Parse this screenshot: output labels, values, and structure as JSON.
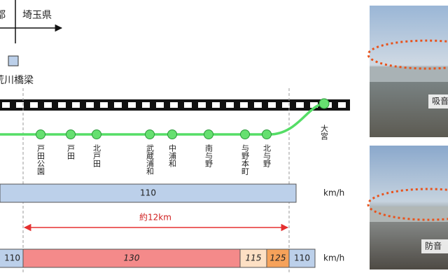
{
  "map_key": {
    "left": "都",
    "right": "埼玉県"
  },
  "bridge_label": "荒川橋梁",
  "stations": [
    "戸田公園",
    "戸田",
    "北戸田",
    "武蔵浦和",
    "中浦和",
    "南与野",
    "与野本町",
    "北与野"
  ],
  "terminal": "大宮",
  "distance_label": "約12km",
  "speed_rows": [
    {
      "segments": [
        "110"
      ],
      "unit": "km/h"
    },
    {
      "segments": [
        "110",
        "130",
        "115",
        "125",
        "110"
      ],
      "unit": "km/h"
    }
  ],
  "photos": [
    {
      "caption": "吸音"
    },
    {
      "caption": "防音"
    }
  ]
}
